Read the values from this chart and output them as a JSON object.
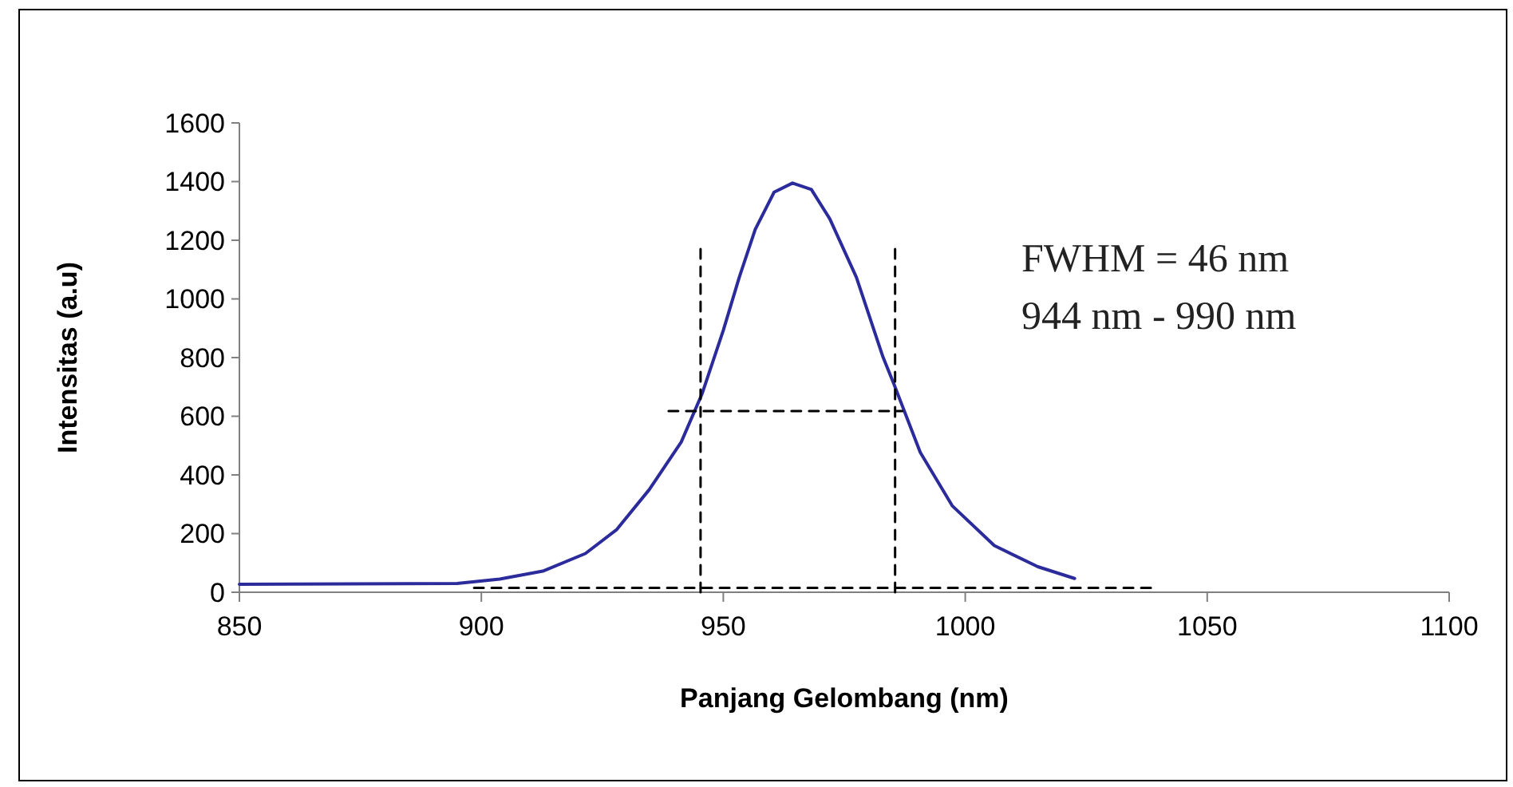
{
  "chart_data": {
    "type": "line",
    "xlabel": "Panjang Gelombang (nm)",
    "ylabel": "Intensitas (a.u)",
    "xlim": [
      850,
      1100
    ],
    "xticks": [
      850,
      900,
      950,
      1000,
      1050,
      1100
    ],
    "ylim": [
      0,
      1600
    ],
    "yticks": [
      0,
      200,
      400,
      600,
      800,
      1000,
      1200,
      1400,
      1600
    ],
    "grid": false,
    "annotations": [
      "FWHM = 46 nm",
      "944 nm - 990 nm"
    ],
    "series": [
      {
        "color": "#2b2b9b",
        "line_style": "solid",
        "x": [
          850,
          895,
          903.8,
          912.7,
          921.5,
          928,
          934.7,
          941.3,
          945.6,
          950,
          953.3,
          956.6,
          960.5,
          964.3,
          968.2,
          972,
          977.5,
          983,
          985.2,
          990.7,
          997.3,
          1006,
          1015,
          1022.6
        ],
        "values": [
          27,
          30,
          45,
          72,
          132,
          214,
          350,
          512,
          676,
          893,
          1074,
          1237,
          1364,
          1395,
          1373,
          1273,
          1074,
          802,
          712,
          477,
          295,
          159,
          87,
          47
        ]
      },
      {
        "color": "#000000",
        "line_style": "dashed",
        "x": [
          945.3,
          945.3
        ],
        "values": [
          0,
          1175
        ]
      },
      {
        "color": "#000000",
        "line_style": "dashed",
        "x": [
          985.5,
          985.5
        ],
        "values": [
          0,
          1175
        ]
      },
      {
        "color": "#000000",
        "line_style": "dashed",
        "x": [
          938.7,
          987
        ],
        "values": [
          618,
          618
        ]
      },
      {
        "color": "#000000",
        "line_style": "dashed",
        "x": [
          898.5,
          1039.5
        ],
        "values": [
          15,
          15
        ]
      }
    ]
  }
}
